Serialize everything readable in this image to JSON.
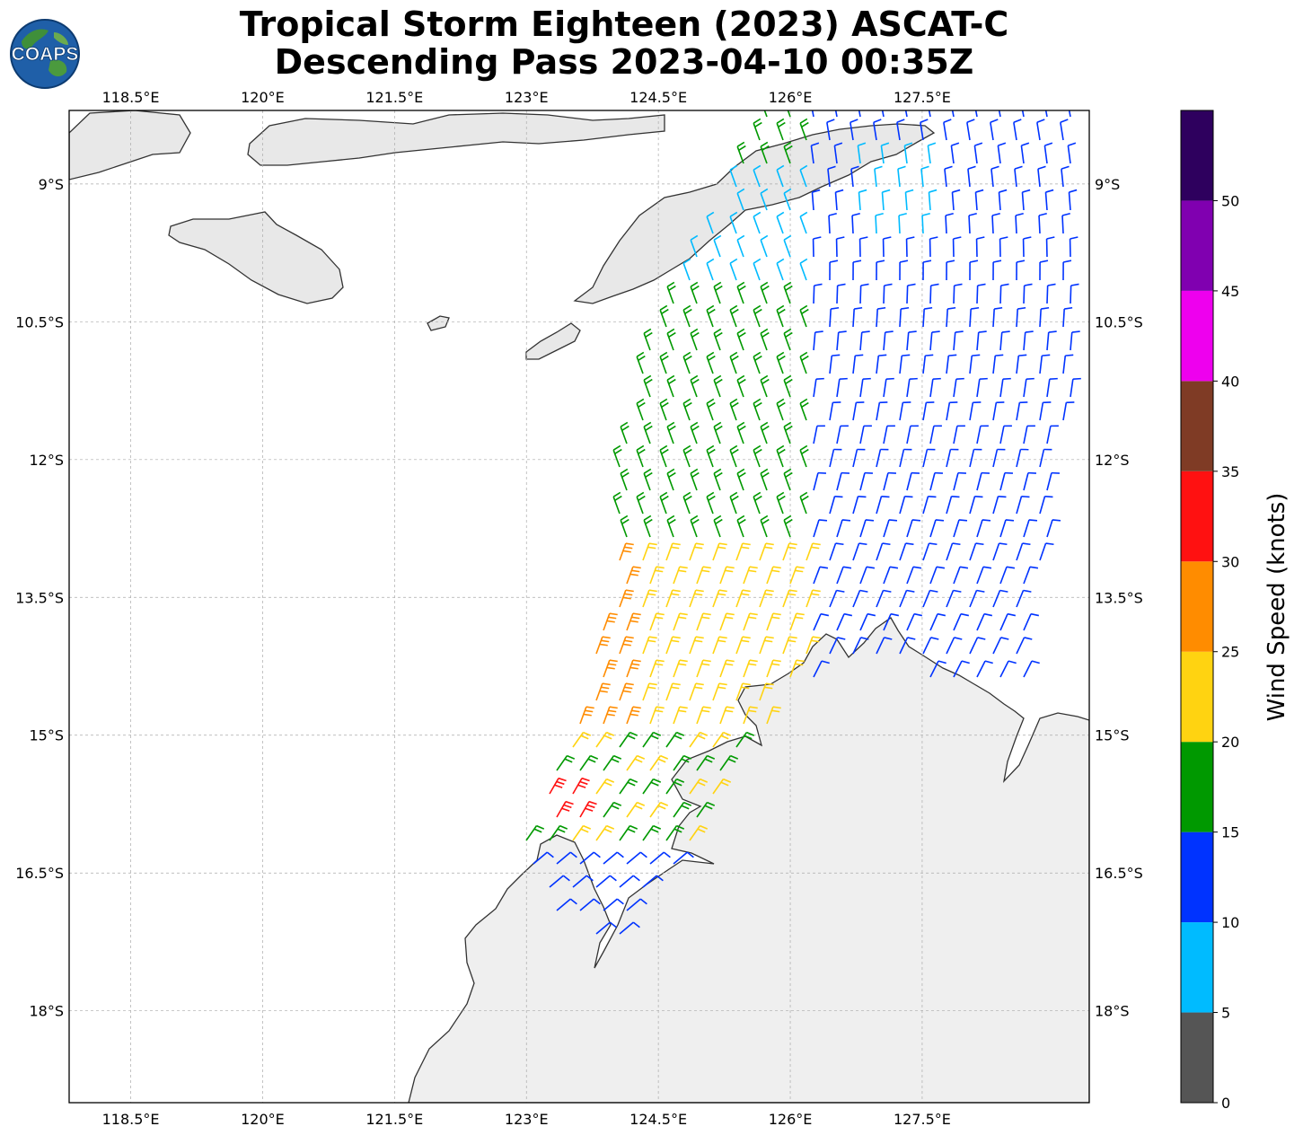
{
  "title": {
    "line1": "Tropical Storm Eighteen (2023) ASCAT-C",
    "line2": "Descending Pass 2023-04-10 00:35Z"
  },
  "logo": {
    "text": "COAPS",
    "icon": "globe-logo-icon"
  },
  "map": {
    "lon_range": [
      117.8,
      129.4
    ],
    "lat_range": [
      -19.0,
      -8.2
    ],
    "lon_ticks": [
      {
        "value": 118.5,
        "label": "118.5°E"
      },
      {
        "value": 120.0,
        "label": "120°E"
      },
      {
        "value": 121.5,
        "label": "121.5°E"
      },
      {
        "value": 123.0,
        "label": "123°E"
      },
      {
        "value": 124.5,
        "label": "124.5°E"
      },
      {
        "value": 126.0,
        "label": "126°E"
      },
      {
        "value": 127.5,
        "label": "127.5°E"
      }
    ],
    "lat_ticks": [
      {
        "value": -9.0,
        "label": "9°S"
      },
      {
        "value": -10.5,
        "label": "10.5°S"
      },
      {
        "value": -12.0,
        "label": "12°S"
      },
      {
        "value": -13.5,
        "label": "13.5°S"
      },
      {
        "value": -15.0,
        "label": "15°S"
      },
      {
        "value": -16.5,
        "label": "16.5°S"
      },
      {
        "value": -18.0,
        "label": "18°S"
      }
    ],
    "grid": true,
    "land_color": "#eeeeee",
    "coast_color": "#333333"
  },
  "colorbar": {
    "label": "Wind Speed (knots)",
    "min": 0,
    "max": 55,
    "tick_labels": [
      "0",
      "5",
      "10",
      "15",
      "20",
      "25",
      "30",
      "35",
      "40",
      "45",
      "50"
    ],
    "bins": [
      {
        "from": 0,
        "to": 5,
        "color": "#555555"
      },
      {
        "from": 5,
        "to": 10,
        "color": "#00bbff"
      },
      {
        "from": 10,
        "to": 15,
        "color": "#0033ff"
      },
      {
        "from": 15,
        "to": 20,
        "color": "#009900"
      },
      {
        "from": 20,
        "to": 25,
        "color": "#ffd311"
      },
      {
        "from": 25,
        "to": 30,
        "color": "#ff8c00"
      },
      {
        "from": 30,
        "to": 35,
        "color": "#ff1111"
      },
      {
        "from": 35,
        "to": 40,
        "color": "#7f3b25"
      },
      {
        "from": 40,
        "to": 45,
        "color": "#ee00ee"
      },
      {
        "from": 45,
        "to": 50,
        "color": "#8000b0"
      },
      {
        "from": 50,
        "to": 55,
        "color": "#2e005e"
      }
    ]
  }
}
